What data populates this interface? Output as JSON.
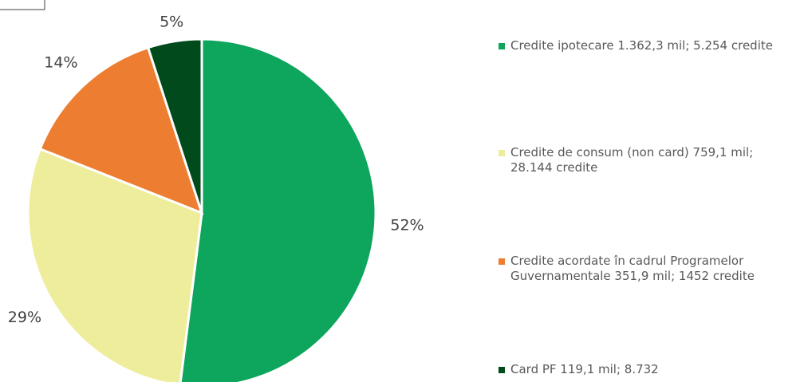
{
  "chart_data": {
    "type": "pie",
    "categories": [
      "Credite ipotecare 1.362,3 mil; 5.254 credite",
      "Credite de consum (non card) 759,1 mil; 28.144 credite",
      "Credite acordate în cadrul Programelor Guvernamentale 351,9 mil; 1452 credite",
      "Card PF 119,1 mil; 8.732"
    ],
    "values": [
      52,
      29,
      14,
      5
    ],
    "value_labels": [
      "52%",
      "29%",
      "14%",
      "5%"
    ],
    "colors": [
      "#0ea55c",
      "#eeed9c",
      "#ed7d31",
      "#004a1b"
    ],
    "legend": "right"
  }
}
